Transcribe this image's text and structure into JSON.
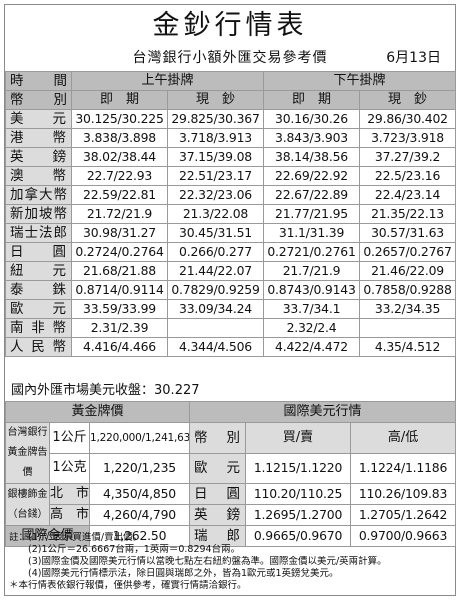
{
  "title": "金鈔行情表",
  "subtitle": "台灣銀行小額外匯交易參考價",
  "date": "6月13日",
  "header": {
    "time": "時　　間",
    "currency": "幣　　別",
    "am": "上午掛牌",
    "pm": "下午掛牌",
    "spot": "即　期",
    "cash": "現　鈔"
  },
  "rates": [
    {
      "name": "美元",
      "am_spot": "30.125/30.225",
      "am_cash": "29.825/30.367",
      "pm_spot": "30.16/30.26",
      "pm_cash": "29.86/30.402"
    },
    {
      "name": "港幣",
      "am_spot": "3.838/3.898",
      "am_cash": "3.718/3.913",
      "pm_spot": "3.843/3.903",
      "pm_cash": "3.723/3.918"
    },
    {
      "name": "英鎊",
      "am_spot": "38.02/38.44",
      "am_cash": "37.15/39.08",
      "pm_spot": "38.14/38.56",
      "pm_cash": "37.27/39.2"
    },
    {
      "name": "澳幣",
      "am_spot": "22.7/22.93",
      "am_cash": "22.51/23.17",
      "pm_spot": "22.69/22.92",
      "pm_cash": "22.5/23.16"
    },
    {
      "name": "加拿大幣",
      "am_spot": "22.59/22.81",
      "am_cash": "22.32/23.06",
      "pm_spot": "22.67/22.89",
      "pm_cash": "22.4/23.14"
    },
    {
      "name": "新加坡幣",
      "am_spot": "21.72/21.9",
      "am_cash": "21.3/22.08",
      "pm_spot": "21.77/21.95",
      "pm_cash": "21.35/22.13"
    },
    {
      "name": "瑞士法郎",
      "am_spot": "30.98/31.27",
      "am_cash": "30.45/31.51",
      "pm_spot": "31.1/31.39",
      "pm_cash": "30.57/31.63"
    },
    {
      "name": "日圓",
      "am_spot": "0.2724/0.2764",
      "am_cash": "0.266/0.277",
      "pm_spot": "0.2721/0.2761",
      "pm_cash": "0.2657/0.2767"
    },
    {
      "name": "紐元",
      "am_spot": "21.68/21.88",
      "am_cash": "21.44/22.07",
      "pm_spot": "21.7/21.9",
      "pm_cash": "21.46/22.09"
    },
    {
      "name": "泰銖",
      "am_spot": "0.8714/0.9114",
      "am_cash": "0.7829/0.9259",
      "pm_spot": "0.8743/0.9143",
      "pm_cash": "0.7858/0.9288"
    },
    {
      "name": "歐元",
      "am_spot": "33.59/33.99",
      "am_cash": "33.09/34.24",
      "pm_spot": "33.7/34.1",
      "pm_cash": "33.2/34.35"
    },
    {
      "name": "南非幣",
      "am_spot": "2.31/2.39",
      "am_cash": "",
      "pm_spot": "2.32/2.4",
      "pm_cash": ""
    },
    {
      "name": "人民幣",
      "am_spot": "4.416/4.466",
      "am_cash": "4.344/4.506",
      "pm_spot": "4.422/4.472",
      "pm_cash": "4.35/4.512"
    }
  ],
  "summary": {
    "label": "國內外匯市場美元收盤：",
    "value": "30.227"
  },
  "gold": {
    "header": "黃金牌價",
    "bank_label": "台灣銀行黃金牌告價",
    "rows_bank": [
      {
        "unit": "1公斤",
        "value": "1,220,000/1,241,635"
      },
      {
        "unit": "1公克",
        "value": "1,220/1,235"
      }
    ],
    "shop_label": "銀樓飾金（台錢）",
    "rows_shop": [
      {
        "city": "北　市",
        "value": "4,350/4,850"
      },
      {
        "city": "高　市",
        "value": "4,260/4,790"
      }
    ],
    "intl_label": "國際金價",
    "intl_value": "1,262.50"
  },
  "usd": {
    "header": "國際美元行情",
    "col_currency": "幣　別",
    "col_buysell": "買/賣",
    "col_hilo": "高/低",
    "rows": [
      {
        "name": "歐元",
        "buysell": "1.1215/1.1220",
        "hilo": "1.1224/1.1186"
      },
      {
        "name": "日圓",
        "buysell": "110.20/110.25",
        "hilo": "110.26/109.83"
      },
      {
        "name": "英鎊",
        "buysell": "1.2695/1.2700",
        "hilo": "1.2705/1.2642"
      },
      {
        "name": "瑞郎",
        "buysell": "0.9665/0.9670",
        "hilo": "0.9700/0.9663"
      }
    ]
  },
  "notes": [
    "註：(1)\"/\"表示買進價/賣出價。",
    "　　(2)1公斤＝26.6667台兩，1英兩＝0.8294台兩。",
    "　　(3)國際金價及國際美元行情以當晚七點左右紐約盤為準。國際金價以美元/英兩計算。",
    "　　(4)國際美元行情標示法，除日圓與瑞郎之外，皆為1歐元或1英鎊兌美元。",
    "＊本行情表依銀行報價，僅供參考，確實行情請洽銀行。"
  ]
}
